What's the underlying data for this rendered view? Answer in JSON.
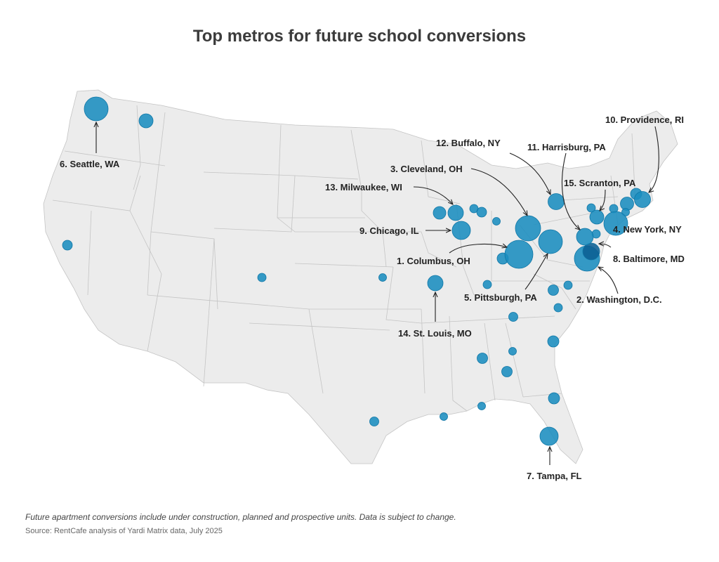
{
  "title": "Top metros for future school conversions",
  "footnote": "Future apartment conversions include under construction, planned and prospective units. Data is subject to change.",
  "source": "Source: RentCafe analysis of Yardi Matrix data, July 2025",
  "colors": {
    "bubble": "#1a8dbf",
    "land": "#ececec",
    "borders": "#c4c4c4",
    "text": "#222222"
  },
  "ranked_metros": [
    {
      "rank": 1,
      "label": "1. Columbus, OH",
      "lat": 39.96,
      "lon": -83.0
    },
    {
      "rank": 2,
      "label": "2. Washington, D.C.",
      "lat": 38.9,
      "lon": -77.04
    },
    {
      "rank": 3,
      "label": "3. Cleveland, OH",
      "lat": 41.5,
      "lon": -81.69
    },
    {
      "rank": 4,
      "label": "4. New York, NY",
      "lat": 40.71,
      "lon": -74.0
    },
    {
      "rank": 5,
      "label": "5. Pittsburgh, PA",
      "lat": 40.44,
      "lon": -80.0
    },
    {
      "rank": 6,
      "label": "6. Seattle, WA",
      "lat": 47.61,
      "lon": -122.33
    },
    {
      "rank": 7,
      "label": "7. Tampa, FL",
      "lat": 27.95,
      "lon": -82.46
    },
    {
      "rank": 8,
      "label": "8. Baltimore, MD",
      "lat": 39.29,
      "lon": -76.61
    },
    {
      "rank": 9,
      "label": "9. Chicago, IL",
      "lat": 41.88,
      "lon": -87.63
    },
    {
      "rank": 10,
      "label": "10. Providence, RI",
      "lat": 41.82,
      "lon": -71.41
    },
    {
      "rank": 11,
      "label": "11. Harrisburg, PA",
      "lat": 40.27,
      "lon": -76.88
    },
    {
      "rank": 12,
      "label": "12. Buffalo, NY",
      "lat": 42.89,
      "lon": -78.88
    },
    {
      "rank": 13,
      "label": "13. Milwaukee, WI",
      "lat": 43.04,
      "lon": -87.91
    },
    {
      "rank": 14,
      "label": "14. St. Louis, MO",
      "lat": 38.63,
      "lon": -90.2
    },
    {
      "rank": 15,
      "label": "15. Scranton, PA",
      "lat": 41.41,
      "lon": -75.66
    }
  ]
}
